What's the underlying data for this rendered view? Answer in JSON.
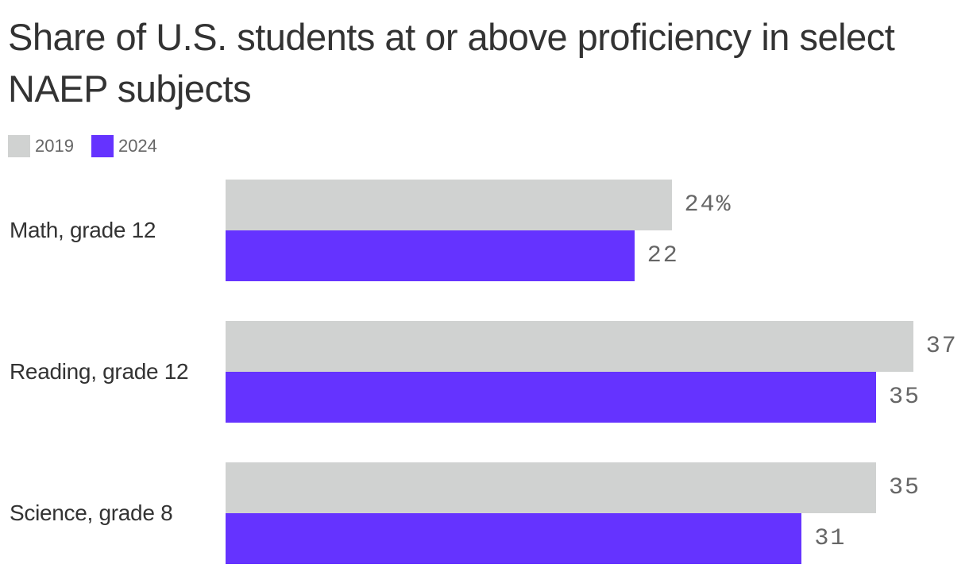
{
  "title": "Share of U.S. students at or above proficiency in select NAEP subjects",
  "legend": [
    {
      "label": "2019",
      "color": "#d0d2d1"
    },
    {
      "label": "2024",
      "color": "#6533ff"
    }
  ],
  "groups": [
    {
      "label": "Math, grade 12",
      "bars": [
        {
          "series": "2019",
          "value": 24,
          "text": "24%"
        },
        {
          "series": "2024",
          "value": 22,
          "text": "22"
        }
      ]
    },
    {
      "label": "Reading, grade 12",
      "bars": [
        {
          "series": "2019",
          "value": 37,
          "text": "37"
        },
        {
          "series": "2024",
          "value": 35,
          "text": "35"
        }
      ]
    },
    {
      "label": "Science, grade 8",
      "bars": [
        {
          "series": "2019",
          "value": 35,
          "text": "35"
        },
        {
          "series": "2024",
          "value": 31,
          "text": "31"
        }
      ]
    }
  ],
  "chart_data": {
    "type": "bar",
    "orientation": "horizontal",
    "title": "Share of U.S. students at or above proficiency in select NAEP subjects",
    "categories": [
      "Math, grade 12",
      "Reading, grade 12",
      "Science, grade 8"
    ],
    "series": [
      {
        "name": "2019",
        "color": "#d0d2d1",
        "values": [
          24,
          37,
          35
        ]
      },
      {
        "name": "2024",
        "color": "#6533ff",
        "values": [
          22,
          35,
          31
        ]
      }
    ],
    "unit": "%",
    "xlabel": "",
    "ylabel": "",
    "legend_position": "top-left",
    "grid": false
  }
}
